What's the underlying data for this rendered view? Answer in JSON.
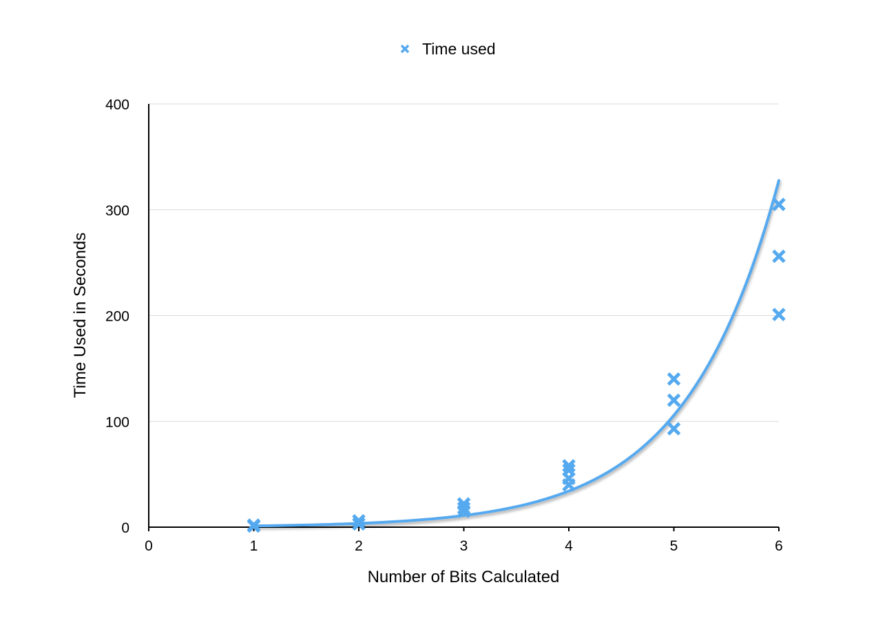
{
  "chart_data": {
    "type": "scatter",
    "title": "",
    "xlabel": "Number of Bits Calculated",
    "ylabel": "Time Used in Seconds",
    "xlim": [
      0,
      6
    ],
    "ylim": [
      0,
      400
    ],
    "x_ticks": [
      "0",
      "1",
      "2",
      "3",
      "4",
      "5",
      "6"
    ],
    "y_ticks": [
      "0",
      "100",
      "200",
      "300",
      "400"
    ],
    "grid": true,
    "legend_position": "top-center",
    "series": [
      {
        "name": "Time used",
        "marker": "x",
        "color": "#55a9ef",
        "points": [
          {
            "x": 1,
            "y": 1
          },
          {
            "x": 1,
            "y": 2
          },
          {
            "x": 2,
            "y": 3
          },
          {
            "x": 2,
            "y": 6
          },
          {
            "x": 3,
            "y": 15
          },
          {
            "x": 3,
            "y": 18
          },
          {
            "x": 3,
            "y": 22
          },
          {
            "x": 4,
            "y": 40
          },
          {
            "x": 4,
            "y": 46
          },
          {
            "x": 4,
            "y": 54
          },
          {
            "x": 4,
            "y": 58
          },
          {
            "x": 5,
            "y": 93
          },
          {
            "x": 5,
            "y": 120
          },
          {
            "x": 5,
            "y": 140
          },
          {
            "x": 6,
            "y": 201
          },
          {
            "x": 6,
            "y": 256
          },
          {
            "x": 6,
            "y": 305
          }
        ]
      }
    ],
    "trendline": {
      "type": "exponential",
      "color": "#55a9ef",
      "x_range": [
        1,
        6
      ],
      "a": 0.37,
      "b": 1.131
    }
  }
}
